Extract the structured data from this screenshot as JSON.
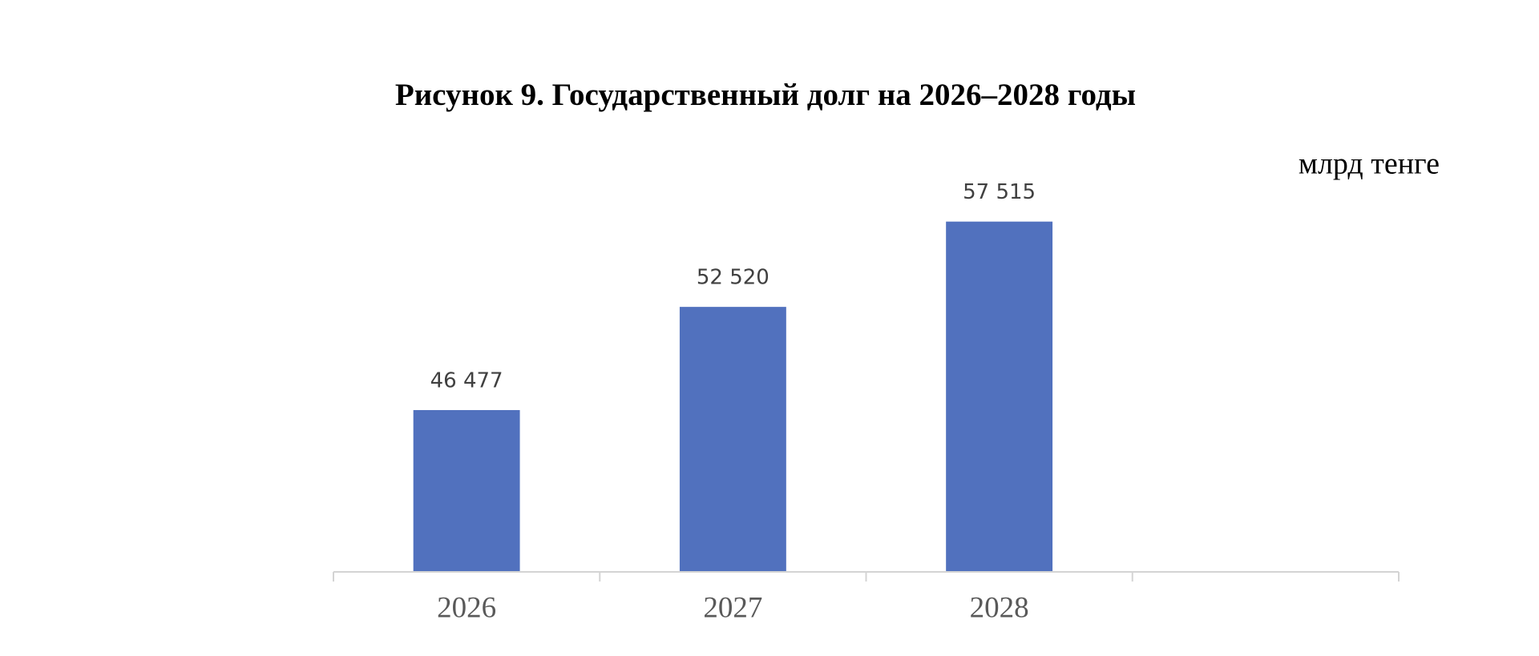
{
  "chart_data": {
    "type": "bar",
    "title": "Рисунок 9. Государственный долг на 2026–2028 годы",
    "unit": "млрд тенге",
    "categories": [
      "2026",
      "2027",
      "2028",
      null
    ],
    "values": [
      46477,
      52520,
      57515,
      null
    ],
    "value_labels": [
      "46 477",
      "52 520",
      "57 515",
      null
    ],
    "color": "#5171be",
    "ylim": [
      37000,
      59000
    ]
  }
}
